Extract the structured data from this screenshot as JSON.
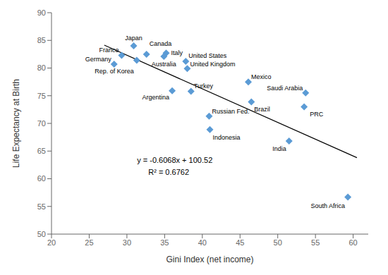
{
  "chart_data": {
    "type": "scatter",
    "xlabel": "Gini Index (net income)",
    "ylabel": "Life Expectancy at Birth",
    "xlim": [
      20,
      62
    ],
    "ylim": [
      50,
      90
    ],
    "xticks": [
      20,
      25,
      30,
      35,
      40,
      45,
      50,
      55,
      60
    ],
    "yticks": [
      50,
      55,
      60,
      65,
      70,
      75,
      80,
      85,
      90
    ],
    "grid": false,
    "marker": "diamond",
    "color": "#5B9BD5",
    "points": [
      {
        "label": "Japan",
        "x": 30.9,
        "y": 84.0
      },
      {
        "label": "Canada",
        "x": 32.6,
        "y": 82.5
      },
      {
        "label": "Italy",
        "x": 35.2,
        "y": 82.7
      },
      {
        "label": "France",
        "x": 29.3,
        "y": 82.3
      },
      {
        "label": "Rep. of Korea",
        "x": 31.3,
        "y": 81.4
      },
      {
        "label": "United States",
        "x": 37.8,
        "y": 81.2
      },
      {
        "label": "Germany",
        "x": 28.3,
        "y": 80.7
      },
      {
        "label": "Australia",
        "x": 34.9,
        "y": 82.1
      },
      {
        "label": "United Kingdom",
        "x": 38.0,
        "y": 79.9
      },
      {
        "label": "Mexico",
        "x": 46.1,
        "y": 77.5
      },
      {
        "label": "Turkey",
        "x": 38.5,
        "y": 75.8
      },
      {
        "label": "Argentina",
        "x": 36.0,
        "y": 75.9
      },
      {
        "label": "Russian Fed.",
        "x": 40.9,
        "y": 71.3
      },
      {
        "label": "Brazil",
        "x": 46.5,
        "y": 73.9
      },
      {
        "label": "Indonesia",
        "x": 41.0,
        "y": 68.9
      },
      {
        "label": "India",
        "x": 51.5,
        "y": 66.8
      },
      {
        "label": "Saudi Arabia",
        "x": 53.7,
        "y": 75.5
      },
      {
        "label": "PRC",
        "x": 53.5,
        "y": 73.0
      },
      {
        "label": "South Africa",
        "x": 59.3,
        "y": 56.7
      }
    ],
    "trendline": {
      "x": [
        27.0,
        60.5
      ],
      "y": [
        84.1364,
        63.8086
      ],
      "color": "#000000"
    },
    "annotations": [
      "y = -0.6068x + 100.52",
      "R² = 0.6762"
    ]
  }
}
